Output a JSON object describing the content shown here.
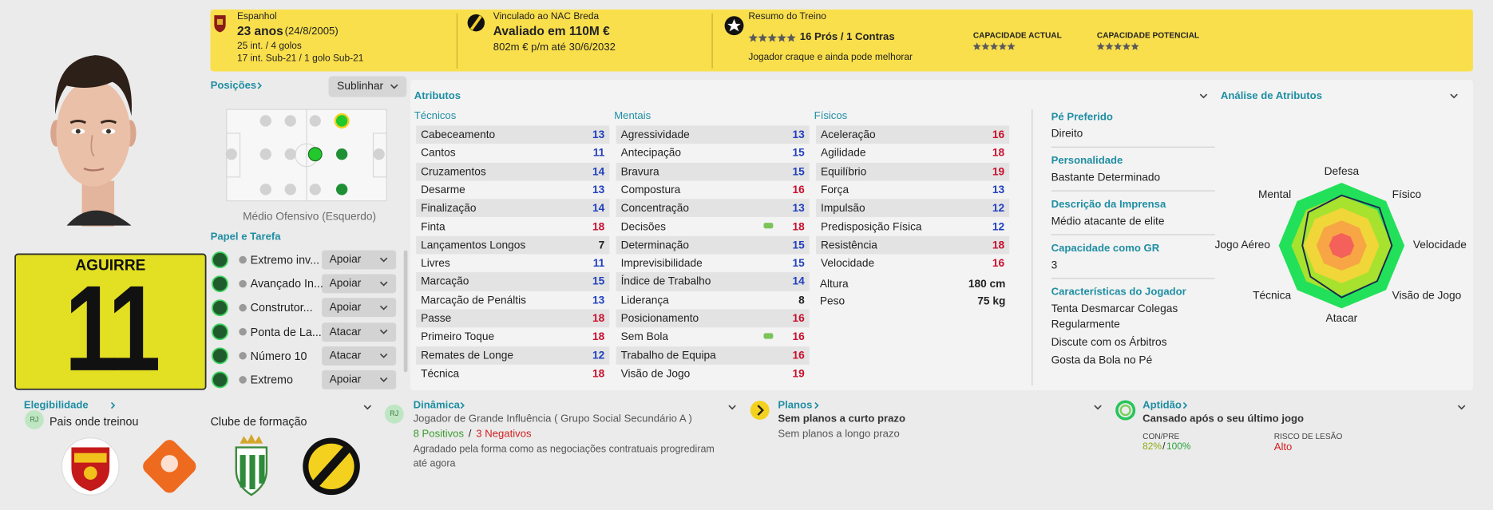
{
  "header": {
    "nationality": "Espanhol",
    "age": "23 anos",
    "dob": "(24/8/2005)",
    "caps": "25 int. / 4 golos",
    "u21": "17 int. Sub-21 / 1 golo Sub-21",
    "club": "Vinculado ao NAC Breda",
    "value": "Avaliado em 110M €",
    "wage": "802m € p/m até 30/6/2032",
    "training_title": "Resumo do Treino",
    "training_stars": 5,
    "pros_cons": "16 Prós / 1 Contras",
    "training_note": "Jogador craque e ainda pode melhorar",
    "current_ability": {
      "label": "CAPACIDADE ACTUAL",
      "stars": 5
    },
    "potential_ability": {
      "label": "CAPACIDADE POTENCIAL",
      "stars": 5
    }
  },
  "shirt": {
    "name": "AGUIRRE",
    "number": "11"
  },
  "positions": {
    "title": "Posições",
    "highlight": "Sublinhar",
    "position": "Médio Ofensivo (Esquerdo)"
  },
  "roles": {
    "title": "Papel e Tarefa",
    "items": [
      {
        "role": "Extremo inv...",
        "duty": "Apoiar"
      },
      {
        "role": "Avançado In...",
        "duty": "Apoiar"
      },
      {
        "role": "Construtor...",
        "duty": "Apoiar"
      },
      {
        "role": "Ponta de La...",
        "duty": "Atacar"
      },
      {
        "role": "Número 10",
        "duty": "Atacar"
      },
      {
        "role": "Extremo",
        "duty": "Apoiar"
      }
    ]
  },
  "eligibility": {
    "title": "Elegibilidade",
    "badge": "RJ",
    "text": "Pais onde treinou",
    "youth_club": "Clube de formação"
  },
  "attributes": {
    "title": "Atributos",
    "groups": [
      {
        "name": "Técnicos",
        "items": [
          {
            "name": "Cabeceamento",
            "value": 13
          },
          {
            "name": "Cantos",
            "value": 11
          },
          {
            "name": "Cruzamentos",
            "value": 14
          },
          {
            "name": "Desarme",
            "value": 13
          },
          {
            "name": "Finalização",
            "value": 14
          },
          {
            "name": "Finta",
            "value": 18
          },
          {
            "name": "Lançamentos Longos",
            "value": 7
          },
          {
            "name": "Livres",
            "value": 11
          },
          {
            "name": "Marcação",
            "value": 15
          },
          {
            "name": "Marcação de Penáltis",
            "value": 13
          },
          {
            "name": "Passe",
            "value": 18
          },
          {
            "name": "Primeiro Toque",
            "value": 18
          },
          {
            "name": "Remates de Longe",
            "value": 12
          },
          {
            "name": "Técnica",
            "value": 18
          }
        ]
      },
      {
        "name": "Mentais",
        "items": [
          {
            "name": "Agressividade",
            "value": 13
          },
          {
            "name": "Antecipação",
            "value": 15
          },
          {
            "name": "Bravura",
            "value": 15
          },
          {
            "name": "Compostura",
            "value": 16
          },
          {
            "name": "Concentração",
            "value": 13
          },
          {
            "name": "Decisões",
            "value": 18
          },
          {
            "name": "Determinação",
            "value": 15
          },
          {
            "name": "Imprevisibilidade",
            "value": 15
          },
          {
            "name": "Índice de Trabalho",
            "value": 14
          },
          {
            "name": "Liderança",
            "value": 8
          },
          {
            "name": "Posicionamento",
            "value": 16
          },
          {
            "name": "Sem Bola",
            "value": 16
          },
          {
            "name": "Trabalho de Equipa",
            "value": 16
          },
          {
            "name": "Visão de Jogo",
            "value": 19
          }
        ]
      },
      {
        "name": "Físicos",
        "items": [
          {
            "name": "Aceleração",
            "value": 16
          },
          {
            "name": "Agilidade",
            "value": 18
          },
          {
            "name": "Equilíbrio",
            "value": 19
          },
          {
            "name": "Força",
            "value": 13
          },
          {
            "name": "Impulsão",
            "value": 12
          },
          {
            "name": "Predisposição Física",
            "value": 12
          },
          {
            "name": "Resistência",
            "value": 18
          },
          {
            "name": "Velocidade",
            "value": 16
          }
        ]
      }
    ],
    "height": {
      "label": "Altura",
      "value": "180 cm"
    },
    "weight": {
      "label": "Peso",
      "value": "75 kg"
    }
  },
  "info": [
    {
      "label": "Pé Preferido",
      "lines": [
        "Direito"
      ]
    },
    {
      "label": "Personalidade",
      "lines": [
        "Bastante Determinado"
      ]
    },
    {
      "label": "Descrição da Imprensa",
      "lines": [
        "Médio atacante de elite"
      ]
    },
    {
      "label": "Capacidade como GR",
      "lines": [
        "3"
      ]
    },
    {
      "label": "Características do Jogador",
      "lines": [
        "Tenta Desmarcar Colegas Regularmente",
        "Discute com os Árbitros",
        "Gosta da Bola no Pé"
      ]
    }
  ],
  "radar": {
    "title": "Análise de Atributos",
    "labels": [
      "Defesa",
      "Físico",
      "Velocidade",
      "Visão de Jogo",
      "Atacar",
      "Técnica",
      "Jogo Aéreo",
      "Mental"
    ],
    "values": [
      16,
      17,
      16,
      16,
      16.5,
      14,
      12.5,
      15
    ],
    "rlim": [
      0,
      20
    ]
  },
  "dynamics": {
    "title": "Dinâmica",
    "badge": "RJ",
    "status": "Jogador de Grande Influência ( Grupo Social Secundário A )",
    "positives": "8 Positivos",
    "separator": "/",
    "negatives": "3 Negativos",
    "note": "Agradado pela forma como as negociações contratuais progrediram até agora"
  },
  "plans": {
    "title": "Planos",
    "short_term": "Sem planos a curto prazo",
    "long_term": "Sem planos a longo prazo"
  },
  "fitness": {
    "title": "Aptidão",
    "status": "Cansado após o seu último jogo",
    "condition_label": "CON/PRE",
    "condition": "82%",
    "separator": "/",
    "sharpness": "100%",
    "injury_label": "RISCO DE LESÃO",
    "injury_risk": "Alto"
  }
}
